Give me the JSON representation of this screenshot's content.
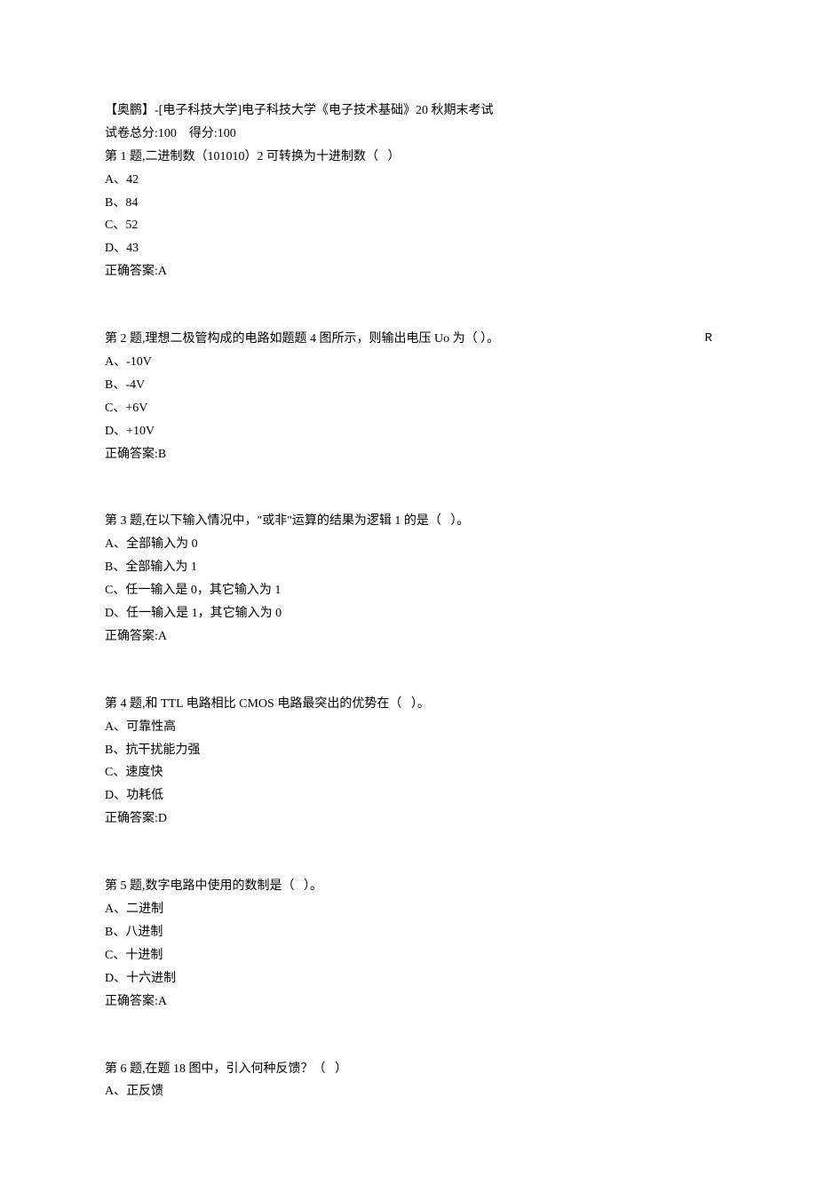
{
  "header": {
    "title": "【奥鹏】-[电子科技大学]电子科技大学《电子技术基础》20 秋期末考试",
    "score_line": "试卷总分:100    得分:100"
  },
  "questions": [
    {
      "prompt": "第 1 题,二进制数（101010）2 可转换为十进制数（   ）",
      "options": [
        "A、42",
        "B、84",
        "C、52",
        "D、43"
      ],
      "answer": "正确答案:A"
    },
    {
      "prompt": "第 2 题,理想二极管构成的电路如题题 4 图所示，则输出电压 Uo 为（   ）。",
      "prompt_suffix": "R",
      "options": [
        "A、-10V",
        "B、-4V",
        "C、+6V",
        "D、+10V"
      ],
      "answer": "正确答案:B"
    },
    {
      "prompt": "第 3 题,在以下输入情况中，\"或非\"运算的结果为逻辑 1 的是（   ）。",
      "options": [
        "A、全部输入为 0",
        "B、全部输入为 1",
        "C、任一输入是 0，其它输入为 1",
        "D、任一输入是 1，其它输入为 0"
      ],
      "answer": "正确答案:A"
    },
    {
      "prompt": "第 4 题,和 TTL 电路相比 CMOS 电路最突出的优势在（   ）。",
      "options": [
        "A、可靠性高",
        "B、抗干扰能力强",
        "C、速度快",
        "D、功耗低"
      ],
      "answer": "正确答案:D"
    },
    {
      "prompt": "第 5 题,数字电路中使用的数制是（   ）。",
      "options": [
        "A、二进制",
        "B、八进制",
        "C、十进制",
        "D、十六进制"
      ],
      "answer": "正确答案:A"
    },
    {
      "prompt": "第 6 题,在题 18 图中，引入何种反馈？（   ）",
      "options": [
        "A、正反馈"
      ],
      "answer": ""
    }
  ]
}
